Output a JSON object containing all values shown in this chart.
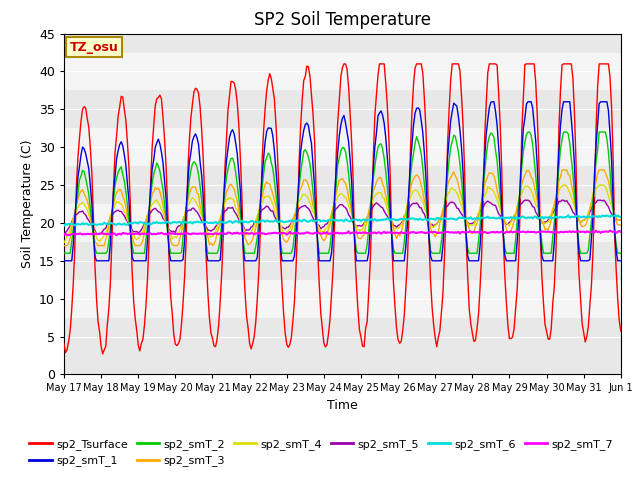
{
  "title": "SP2 Soil Temperature",
  "ylabel": "Soil Temperature (C)",
  "xlabel": "Time",
  "tz_label": "TZ_osu",
  "ylim": [
    0,
    45
  ],
  "series_colors": {
    "sp2_Tsurface": "#ff0000",
    "sp2_smT_1": "#0000dd",
    "sp2_smT_2": "#00cc00",
    "sp2_smT_3": "#ffaa00",
    "sp2_smT_4": "#dddd00",
    "sp2_smT_5": "#9900aa",
    "sp2_smT_6": "#00dddd",
    "sp2_smT_7": "#ff00ff"
  },
  "plot_bg_bands": [
    [
      37.5,
      42.5
    ],
    [
      27.5,
      32.5
    ],
    [
      17.5,
      22.5
    ],
    [
      7.5,
      12.5
    ]
  ],
  "plot_bg_color": "#e8e8e8",
  "plot_light_color": "#f5f5f5",
  "n_points": 361,
  "x_hours": 360,
  "x_tick_labels": [
    "May 17",
    "May 18",
    "May 19",
    "May 20",
    "May 21",
    "May 22",
    "May 23",
    "May 24",
    "May 25",
    "May 26",
    "May 27",
    "May 28",
    "May 29",
    "May 30",
    "May 31",
    "Jun 1"
  ],
  "x_tick_positions": [
    0,
    24,
    48,
    72,
    96,
    120,
    144,
    168,
    192,
    216,
    240,
    264,
    288,
    312,
    336,
    360
  ],
  "yticks": [
    0,
    5,
    10,
    15,
    20,
    25,
    30,
    35,
    40,
    45
  ]
}
